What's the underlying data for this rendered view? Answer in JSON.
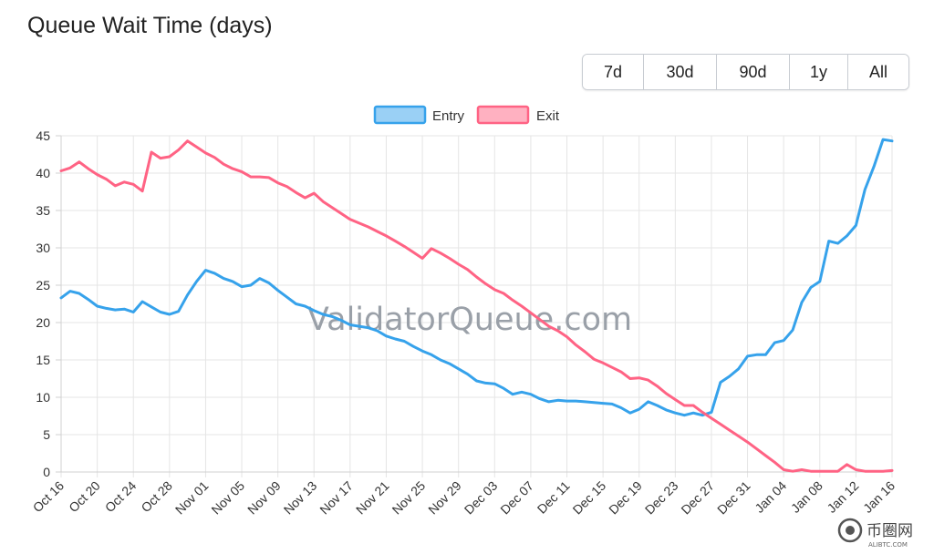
{
  "page": {
    "title": "Queue Wait Time (days)",
    "watermark": "ValidatorQueue.com",
    "corner_logo_text": "币圈网",
    "corner_logo_subtext": "ALIBTC.COM"
  },
  "range_buttons": [
    {
      "label": "7d"
    },
    {
      "label": "30d"
    },
    {
      "label": "90d"
    },
    {
      "label": "1y"
    },
    {
      "label": "All"
    }
  ],
  "colors": {
    "entry": "#36a2eb",
    "entry_fill": "#9ad0f5",
    "exit": "#ff6384",
    "exit_fill": "#ffb1c1",
    "grid": "#e5e5e5",
    "watermark": "#9aa0a8"
  },
  "chart_data": {
    "type": "line",
    "title": "Queue Wait Time (days)",
    "xlabel": "",
    "ylabel": "",
    "ylim": [
      0,
      45
    ],
    "y_ticks": [
      0,
      5,
      10,
      15,
      20,
      25,
      30,
      35,
      40,
      45
    ],
    "x_tick_labels": [
      "Oct 16",
      "Oct 20",
      "Oct 24",
      "Oct 28",
      "Nov 01",
      "Nov 05",
      "Nov 09",
      "Nov 13",
      "Nov 17",
      "Nov 21",
      "Nov 25",
      "Nov 29",
      "Dec 03",
      "Dec 07",
      "Dec 11",
      "Dec 15",
      "Dec 19",
      "Dec 23",
      "Dec 27",
      "Dec 31",
      "Jan 04",
      "Jan 08",
      "Jan 12",
      "Jan 16"
    ],
    "grid": true,
    "legend_position": "top-center",
    "series": [
      {
        "name": "Entry",
        "values": [
          23.3,
          24.2,
          23.9,
          23.1,
          22.2,
          21.9,
          21.7,
          21.8,
          21.4,
          22.8,
          22.1,
          21.4,
          21.1,
          21.5,
          23.7,
          25.5,
          27.0,
          26.6,
          25.9,
          25.5,
          24.8,
          25.0,
          25.9,
          25.3,
          24.3,
          23.4,
          22.5,
          22.2,
          21.6,
          21.1,
          20.8,
          20.3,
          19.7,
          19.5,
          19.3,
          18.9,
          18.2,
          17.8,
          17.5,
          16.8,
          16.2,
          15.7,
          15.0,
          14.5,
          13.8,
          13.1,
          12.2,
          11.9,
          11.8,
          11.2,
          10.4,
          10.7,
          10.4,
          9.8,
          9.4,
          9.6,
          9.5,
          9.5,
          9.4,
          9.3,
          9.2,
          9.1,
          8.6,
          7.9,
          8.4,
          9.4,
          8.9,
          8.3,
          7.9,
          7.6,
          7.9,
          7.6,
          8.0,
          12.0,
          12.8,
          13.8,
          15.5,
          15.7,
          15.7,
          17.3,
          17.6,
          19.0,
          22.7,
          24.7,
          25.5,
          30.9,
          30.6,
          31.6,
          33.0,
          37.8,
          40.9,
          44.5,
          44.3
        ]
      },
      {
        "name": "Exit",
        "values": [
          40.3,
          40.7,
          41.5,
          40.6,
          39.8,
          39.2,
          38.3,
          38.8,
          38.5,
          37.6,
          42.8,
          42.0,
          42.2,
          43.1,
          44.3,
          43.5,
          42.7,
          42.1,
          41.2,
          40.6,
          40.2,
          39.5,
          39.5,
          39.4,
          38.7,
          38.2,
          37.4,
          36.7,
          37.3,
          36.2,
          35.4,
          34.6,
          33.8,
          33.3,
          32.8,
          32.2,
          31.6,
          30.9,
          30.2,
          29.4,
          28.6,
          29.9,
          29.3,
          28.6,
          27.8,
          27.1,
          26.1,
          25.2,
          24.4,
          23.9,
          23.0,
          22.2,
          21.3,
          20.4,
          19.5,
          18.9,
          18.1,
          17.0,
          16.1,
          15.1,
          14.6,
          14.0,
          13.4,
          12.5,
          12.6,
          12.3,
          11.5,
          10.5,
          9.7,
          8.9,
          8.9,
          8.0,
          7.2,
          6.4,
          5.6,
          4.8,
          4.0,
          3.1,
          2.2,
          1.3,
          0.3,
          0.1,
          0.3,
          0.1,
          0.1,
          0.1,
          0.1,
          1.0,
          0.3,
          0.1,
          0.1,
          0.1,
          0.2
        ]
      }
    ]
  }
}
